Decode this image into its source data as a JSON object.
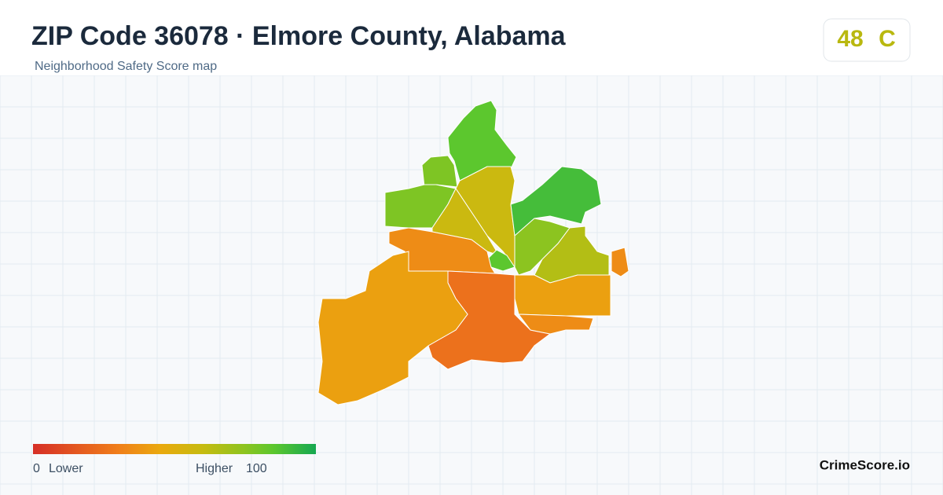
{
  "header": {
    "title": "ZIP Code 36078 · Elmore County, Alabama",
    "subtitle": "Neighborhood Safety Score map"
  },
  "score": {
    "value": 48,
    "grade": "C"
  },
  "regions": [
    {
      "score": 85
    },
    {
      "score": 78
    },
    {
      "score": 78
    },
    {
      "score": 58
    },
    {
      "score": 58
    },
    {
      "score": 90
    },
    {
      "score": 85
    },
    {
      "score": 75
    },
    {
      "score": 65
    },
    {
      "score": 35
    },
    {
      "score": 35
    },
    {
      "score": 42
    },
    {
      "score": 25
    },
    {
      "score": 35
    },
    {
      "score": 42
    }
  ],
  "legend": {
    "min": 0,
    "min_label": "Lower",
    "max_label": "Higher",
    "max": 100
  },
  "brand": "CrimeScore.io"
}
